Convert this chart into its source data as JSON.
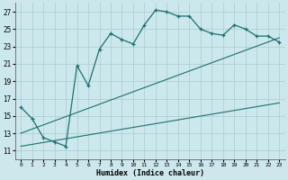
{
  "title": "",
  "xlabel": "Humidex (Indice chaleur)",
  "background_color": "#cce8ec",
  "grid_color": "#aacccc",
  "line_color": "#1a7070",
  "xlim": [
    -0.5,
    23.5
  ],
  "ylim": [
    10,
    28
  ],
  "xticks": [
    0,
    1,
    2,
    3,
    4,
    5,
    6,
    7,
    8,
    9,
    10,
    11,
    12,
    13,
    14,
    15,
    16,
    17,
    18,
    19,
    20,
    21,
    22,
    23
  ],
  "yticks": [
    11,
    13,
    15,
    17,
    19,
    21,
    23,
    25,
    27
  ],
  "curve_x": [
    0,
    1,
    2,
    3,
    4,
    5,
    6,
    7,
    8,
    9,
    10,
    11,
    12,
    13,
    14,
    15,
    16,
    17,
    18,
    19,
    20,
    21,
    22,
    23
  ],
  "curve_y": [
    16,
    14.7,
    12.5,
    12.0,
    11.5,
    20.8,
    18.5,
    22.7,
    24.5,
    23.8,
    23.3,
    25.5,
    27.2,
    27.0,
    26.5,
    26.5,
    25.0,
    24.5,
    24.3,
    25.5,
    25.0,
    24.2,
    24.2,
    23.5
  ],
  "line1_x": [
    0,
    23
  ],
  "line1_y": [
    13.0,
    24.0
  ],
  "line2_x": [
    0,
    23
  ],
  "line2_y": [
    11.5,
    16.5
  ]
}
